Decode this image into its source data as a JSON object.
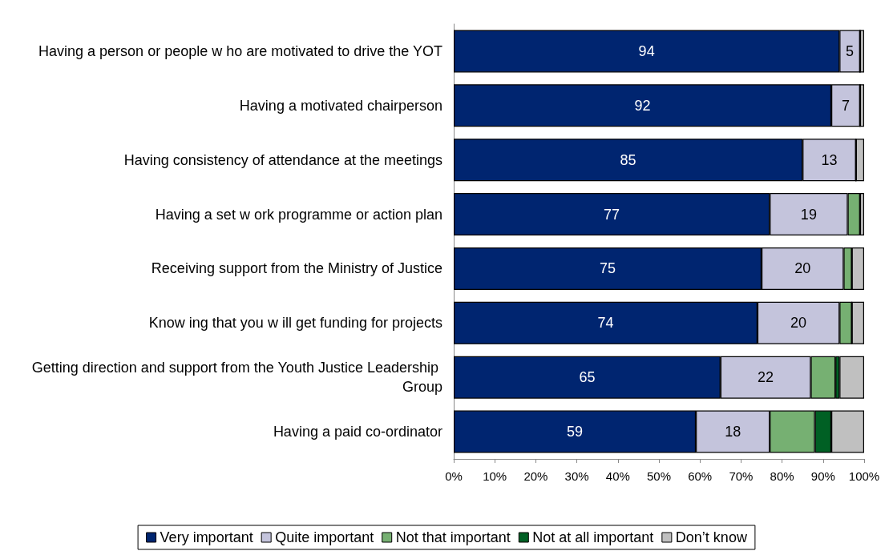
{
  "chart_data": {
    "type": "bar",
    "orientation": "horizontal",
    "stacked": true,
    "categories": [
      "Having a person or people w ho are motivated to drive the YOT",
      "Having a motivated chairperson",
      "Having consistency of attendance at the meetings",
      "Having a set w ork programme or action plan",
      "Receiving support from the Ministry of Justice",
      "Know ing that you w ill get funding for projects",
      "Getting direction and support from the Youth Justice Leadership Group",
      "Having a paid co-ordinator"
    ],
    "series": [
      {
        "name": "Very important",
        "color": "#002570",
        "values": [
          94,
          92,
          85,
          77,
          75,
          74,
          65,
          59
        ],
        "value_labels": [
          "94",
          "92",
          "85",
          "77",
          "75",
          "74",
          "65",
          "59"
        ]
      },
      {
        "name": "Quite important",
        "color": "#c4c4dc",
        "values": [
          5,
          7,
          13,
          19,
          20,
          20,
          22,
          18
        ],
        "value_labels": [
          "5",
          "7",
          "13",
          "19",
          "20",
          "20",
          "22",
          "18"
        ]
      },
      {
        "name": "Not that important",
        "color": "#76b072",
        "values": [
          0,
          0,
          0,
          3,
          2,
          3,
          6,
          11
        ]
      },
      {
        "name": "Not at all important",
        "color": "#006024",
        "values": [
          0,
          0,
          0,
          0,
          0,
          0,
          1,
          4
        ]
      },
      {
        "name": "Don’t know",
        "color": "#c0c0c0",
        "values": [
          1,
          1,
          2,
          1,
          3,
          3,
          6,
          8
        ]
      }
    ],
    "xlim": [
      0,
      100
    ],
    "xticks": [
      {
        "value": 0,
        "label": "0%"
      },
      {
        "value": 10,
        "label": "10%"
      },
      {
        "value": 20,
        "label": "20%"
      },
      {
        "value": 30,
        "label": "30%"
      },
      {
        "value": 40,
        "label": "40%"
      },
      {
        "value": 50,
        "label": "50%"
      },
      {
        "value": 60,
        "label": "60%"
      },
      {
        "value": 70,
        "label": "70%"
      },
      {
        "value": 80,
        "label": "80%"
      },
      {
        "value": 90,
        "label": "90%"
      },
      {
        "value": 100,
        "label": "100%"
      }
    ],
    "grid": false,
    "legend": "bottom"
  }
}
